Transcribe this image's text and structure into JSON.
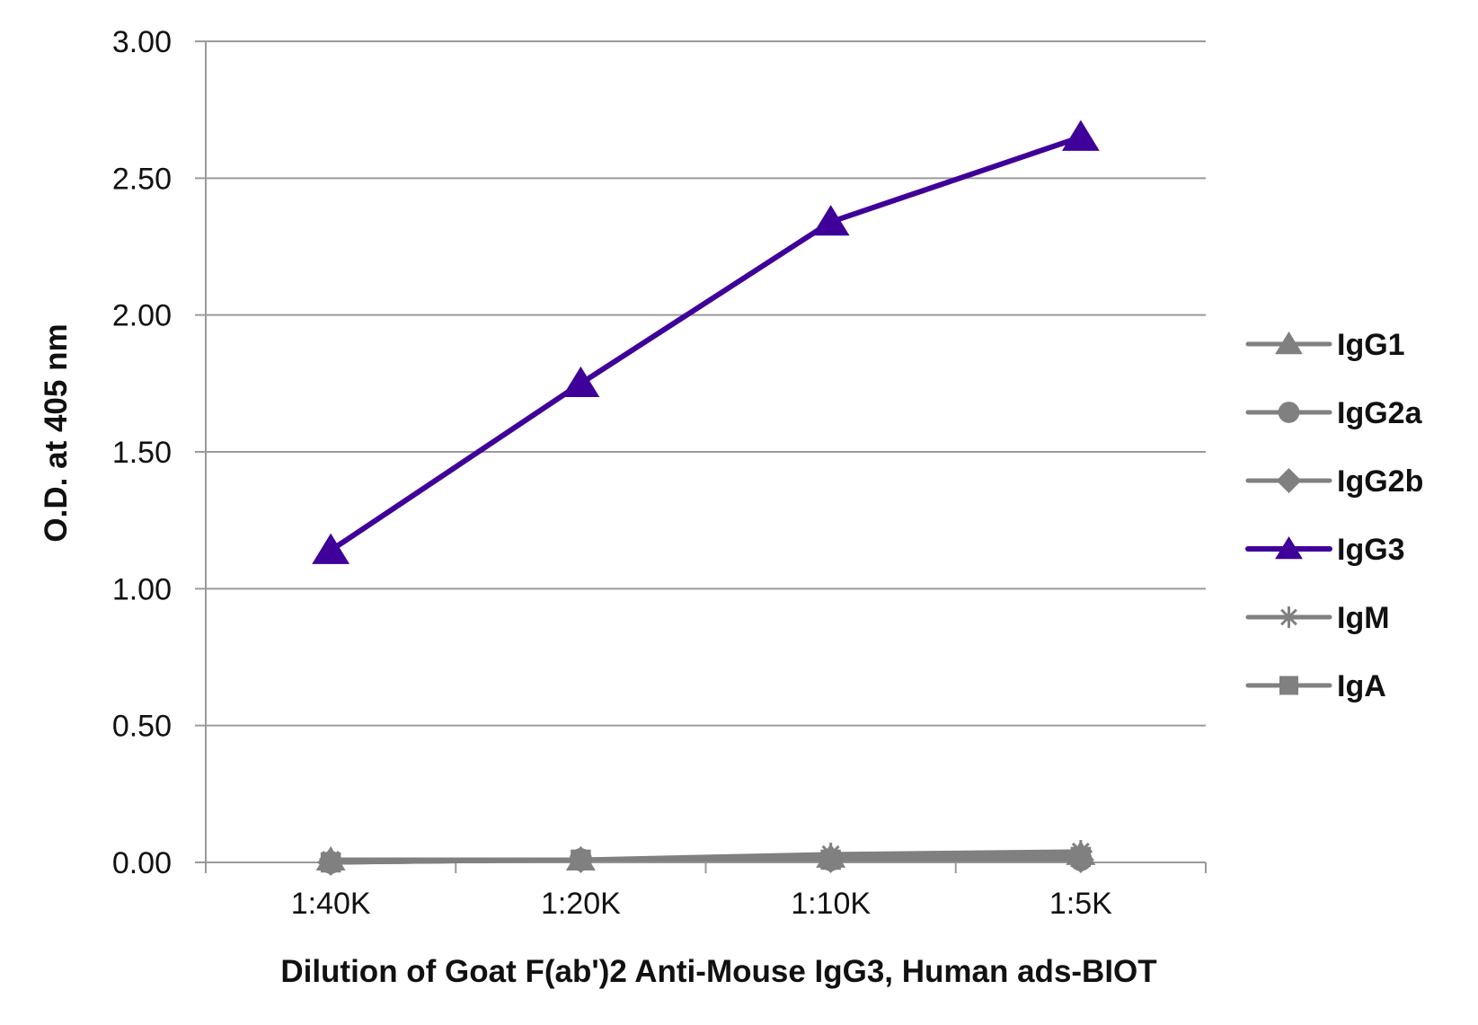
{
  "chart_data": {
    "type": "line",
    "categories": [
      "1:40K",
      "1:20K",
      "1:10K",
      "1:5K"
    ],
    "xlabel": "Dilution of Goat F(ab')2 Anti-Mouse IgG3, Human ads-BIOT",
    "ylabel": "O.D. at 405 nm",
    "ylim": [
      0,
      3
    ],
    "yticks": [
      "0.00",
      "0.50",
      "1.00",
      "1.50",
      "2.00",
      "2.50",
      "3.00"
    ],
    "grid": true,
    "legend_position": "right",
    "series": [
      {
        "name": "IgG1",
        "marker": "triangle",
        "color": "#808080",
        "values": [
          0.01,
          0.01,
          0.02,
          0.03
        ]
      },
      {
        "name": "IgG2a",
        "marker": "circle",
        "color": "#808080",
        "values": [
          0.0,
          0.01,
          0.01,
          0.01
        ]
      },
      {
        "name": "IgG2b",
        "marker": "diamond",
        "color": "#808080",
        "values": [
          0.0,
          0.01,
          0.01,
          0.01
        ]
      },
      {
        "name": "IgG3",
        "marker": "triangle",
        "color": "#3f0099",
        "values": [
          1.14,
          1.75,
          2.34,
          2.65
        ]
      },
      {
        "name": "IgM",
        "marker": "star",
        "color": "#808080",
        "values": [
          0.01,
          0.01,
          0.03,
          0.04
        ]
      },
      {
        "name": "IgA",
        "marker": "square",
        "color": "#808080",
        "values": [
          0.0,
          0.01,
          0.01,
          0.02
        ]
      }
    ]
  }
}
